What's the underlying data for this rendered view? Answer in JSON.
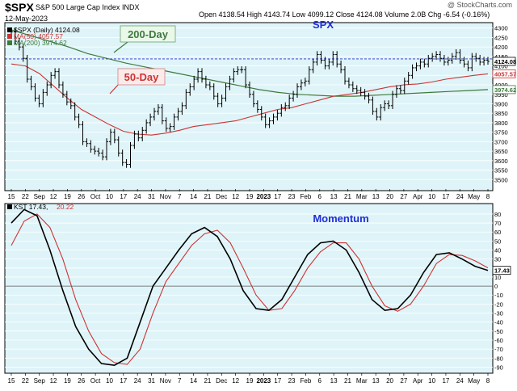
{
  "header": {
    "symbol": "$SPX",
    "name": "S&P 500 Large Cap Index",
    "exchange": "INDX",
    "date": "12-May-2023",
    "quote": "Open 4138.54  High 4143.74  Low 4099.12  Close 4124.08  Volume 2.0B  Chg -6.54 (-0.16%)",
    "credit": "@ StockCharts.com"
  },
  "colors": {
    "panel_bg": "#dff4f8",
    "bar": "#000000",
    "ma50": "#cc3333",
    "ma200": "#3e7a3e",
    "ref_line": "#1f2fd6",
    "kst": "#000000",
    "kst_signal": "#cc3333",
    "annotation_text": "#1f2fd6"
  },
  "chart_data": [
    {
      "type": "ohlc",
      "title": "SPX",
      "legend": [
        {
          "text": "$SPX (Daily) 4124.08",
          "color": "#000000"
        },
        {
          "text": "MA(50) 4057.57",
          "color": "#cc3333"
        },
        {
          "text": "MA(200) 3974.62",
          "color": "#3e7a3e"
        }
      ],
      "annotations": [
        {
          "text": "200-Day",
          "color": "#3e7a3e"
        },
        {
          "text": "50-Day",
          "color": "#cc3333"
        }
      ],
      "last_value_tags": [
        "4124.08",
        "4057.57",
        "3974.62"
      ],
      "ylim": [
        3450,
        4320
      ],
      "y_ticks": [
        3500,
        3550,
        3600,
        3650,
        3700,
        3750,
        3800,
        3850,
        3900,
        3950,
        4000,
        4050,
        4100,
        4150,
        4200,
        4250,
        4300
      ],
      "reference_line": 4137,
      "series": [
        {
          "name": "$SPX",
          "closes": [
            4280,
            4230,
            4200,
            4140,
            4030,
            3990,
            3930,
            3900,
            3960,
            4000,
            4050,
            4070,
            4000,
            3950,
            3910,
            3890,
            3830,
            3790,
            3700,
            3690,
            3660,
            3650,
            3640,
            3620,
            3700,
            3750,
            3710,
            3640,
            3590,
            3580,
            3680,
            3740,
            3720,
            3760,
            3800,
            3830,
            3860,
            3880,
            3810,
            3770,
            3780,
            3830,
            3860,
            3890,
            3960,
            3990,
            4030,
            4070,
            4030,
            4000,
            3990,
            3940,
            3900,
            3930,
            3990,
            4030,
            4070,
            4080,
            4080,
            4000,
            3950,
            3900,
            3870,
            3830,
            3790,
            3810,
            3830,
            3850,
            3880,
            3890,
            3930,
            3950,
            3990,
            4010,
            4020,
            4080,
            4120,
            4160,
            4130,
            4100,
            4120,
            4160,
            4110,
            4080,
            4020,
            4000,
            3980,
            3970,
            3960,
            3940,
            3920,
            3860,
            3830,
            3880,
            3900,
            3890,
            3950,
            3980,
            3970,
            4020,
            4050,
            4090,
            4100,
            4120,
            4110,
            4140,
            4150,
            4160,
            4140,
            4120,
            4130,
            4150,
            4170,
            4130,
            4110,
            4090,
            4150,
            4140,
            4120,
            4130,
            4124
          ]
        },
        {
          "name": "MA(50)",
          "values": [
            4110,
            4100,
            4060,
            3995,
            3930,
            3870,
            3830,
            3790,
            3755,
            3740,
            3735,
            3745,
            3760,
            3780,
            3790,
            3800,
            3810,
            3830,
            3850,
            3870,
            3880,
            3900,
            3920,
            3940,
            3950,
            3960,
            3975,
            3990,
            4000,
            4005,
            4015,
            4030,
            4040,
            4050,
            4058
          ]
        },
        {
          "name": "MA(200)",
          "values": [
            4290,
            4260,
            4230,
            4200,
            4165,
            4140,
            4115,
            4095,
            4075,
            4055,
            4035,
            4015,
            3995,
            3975,
            3960,
            3950,
            3945,
            3940,
            3940,
            3945,
            3950,
            3955,
            3960,
            3965,
            3970,
            3975
          ]
        }
      ]
    },
    {
      "type": "line",
      "title": "Momentum",
      "legend": [
        {
          "text": "KST 17.43,",
          "color": "#000000"
        },
        {
          "text": "20.22",
          "color": "#cc3333"
        }
      ],
      "last_value_tags": [
        "17.43"
      ],
      "ylim": [
        -95,
        88
      ],
      "y_ticks": [
        -90,
        -80,
        -70,
        -60,
        -50,
        -40,
        -30,
        -20,
        -10,
        0,
        10,
        20,
        30,
        40,
        50,
        60,
        70,
        80
      ],
      "zero_line": true,
      "series": [
        {
          "name": "KST",
          "values": [
            70,
            85,
            78,
            40,
            -5,
            -45,
            -70,
            -86,
            -88,
            -80,
            -40,
            0,
            20,
            40,
            58,
            65,
            55,
            30,
            -5,
            -25,
            -27,
            -15,
            10,
            35,
            48,
            50,
            40,
            15,
            -15,
            -27,
            -25,
            -10,
            15,
            35,
            37,
            30,
            22,
            17.43
          ]
        },
        {
          "name": "Signal",
          "values": [
            45,
            72,
            80,
            65,
            30,
            -15,
            -50,
            -75,
            -85,
            -87,
            -70,
            -30,
            5,
            25,
            45,
            58,
            62,
            48,
            20,
            -10,
            -27,
            -25,
            -5,
            20,
            38,
            48,
            48,
            30,
            0,
            -22,
            -28,
            -20,
            0,
            25,
            35,
            34,
            28,
            20.22
          ]
        }
      ]
    }
  ],
  "x_axis": {
    "ticks": [
      "15",
      "22",
      "Sep",
      "12",
      "19",
      "26",
      "Oct",
      "10",
      "17",
      "24",
      "31",
      "Nov",
      "7",
      "14",
      "21",
      "Dec",
      "12",
      "19",
      "2023",
      "17",
      "23",
      "Feb",
      "6",
      "13",
      "21",
      "Mar",
      "13",
      "20",
      "27",
      "Apr",
      "10",
      "17",
      "24",
      "May",
      "8"
    ]
  }
}
